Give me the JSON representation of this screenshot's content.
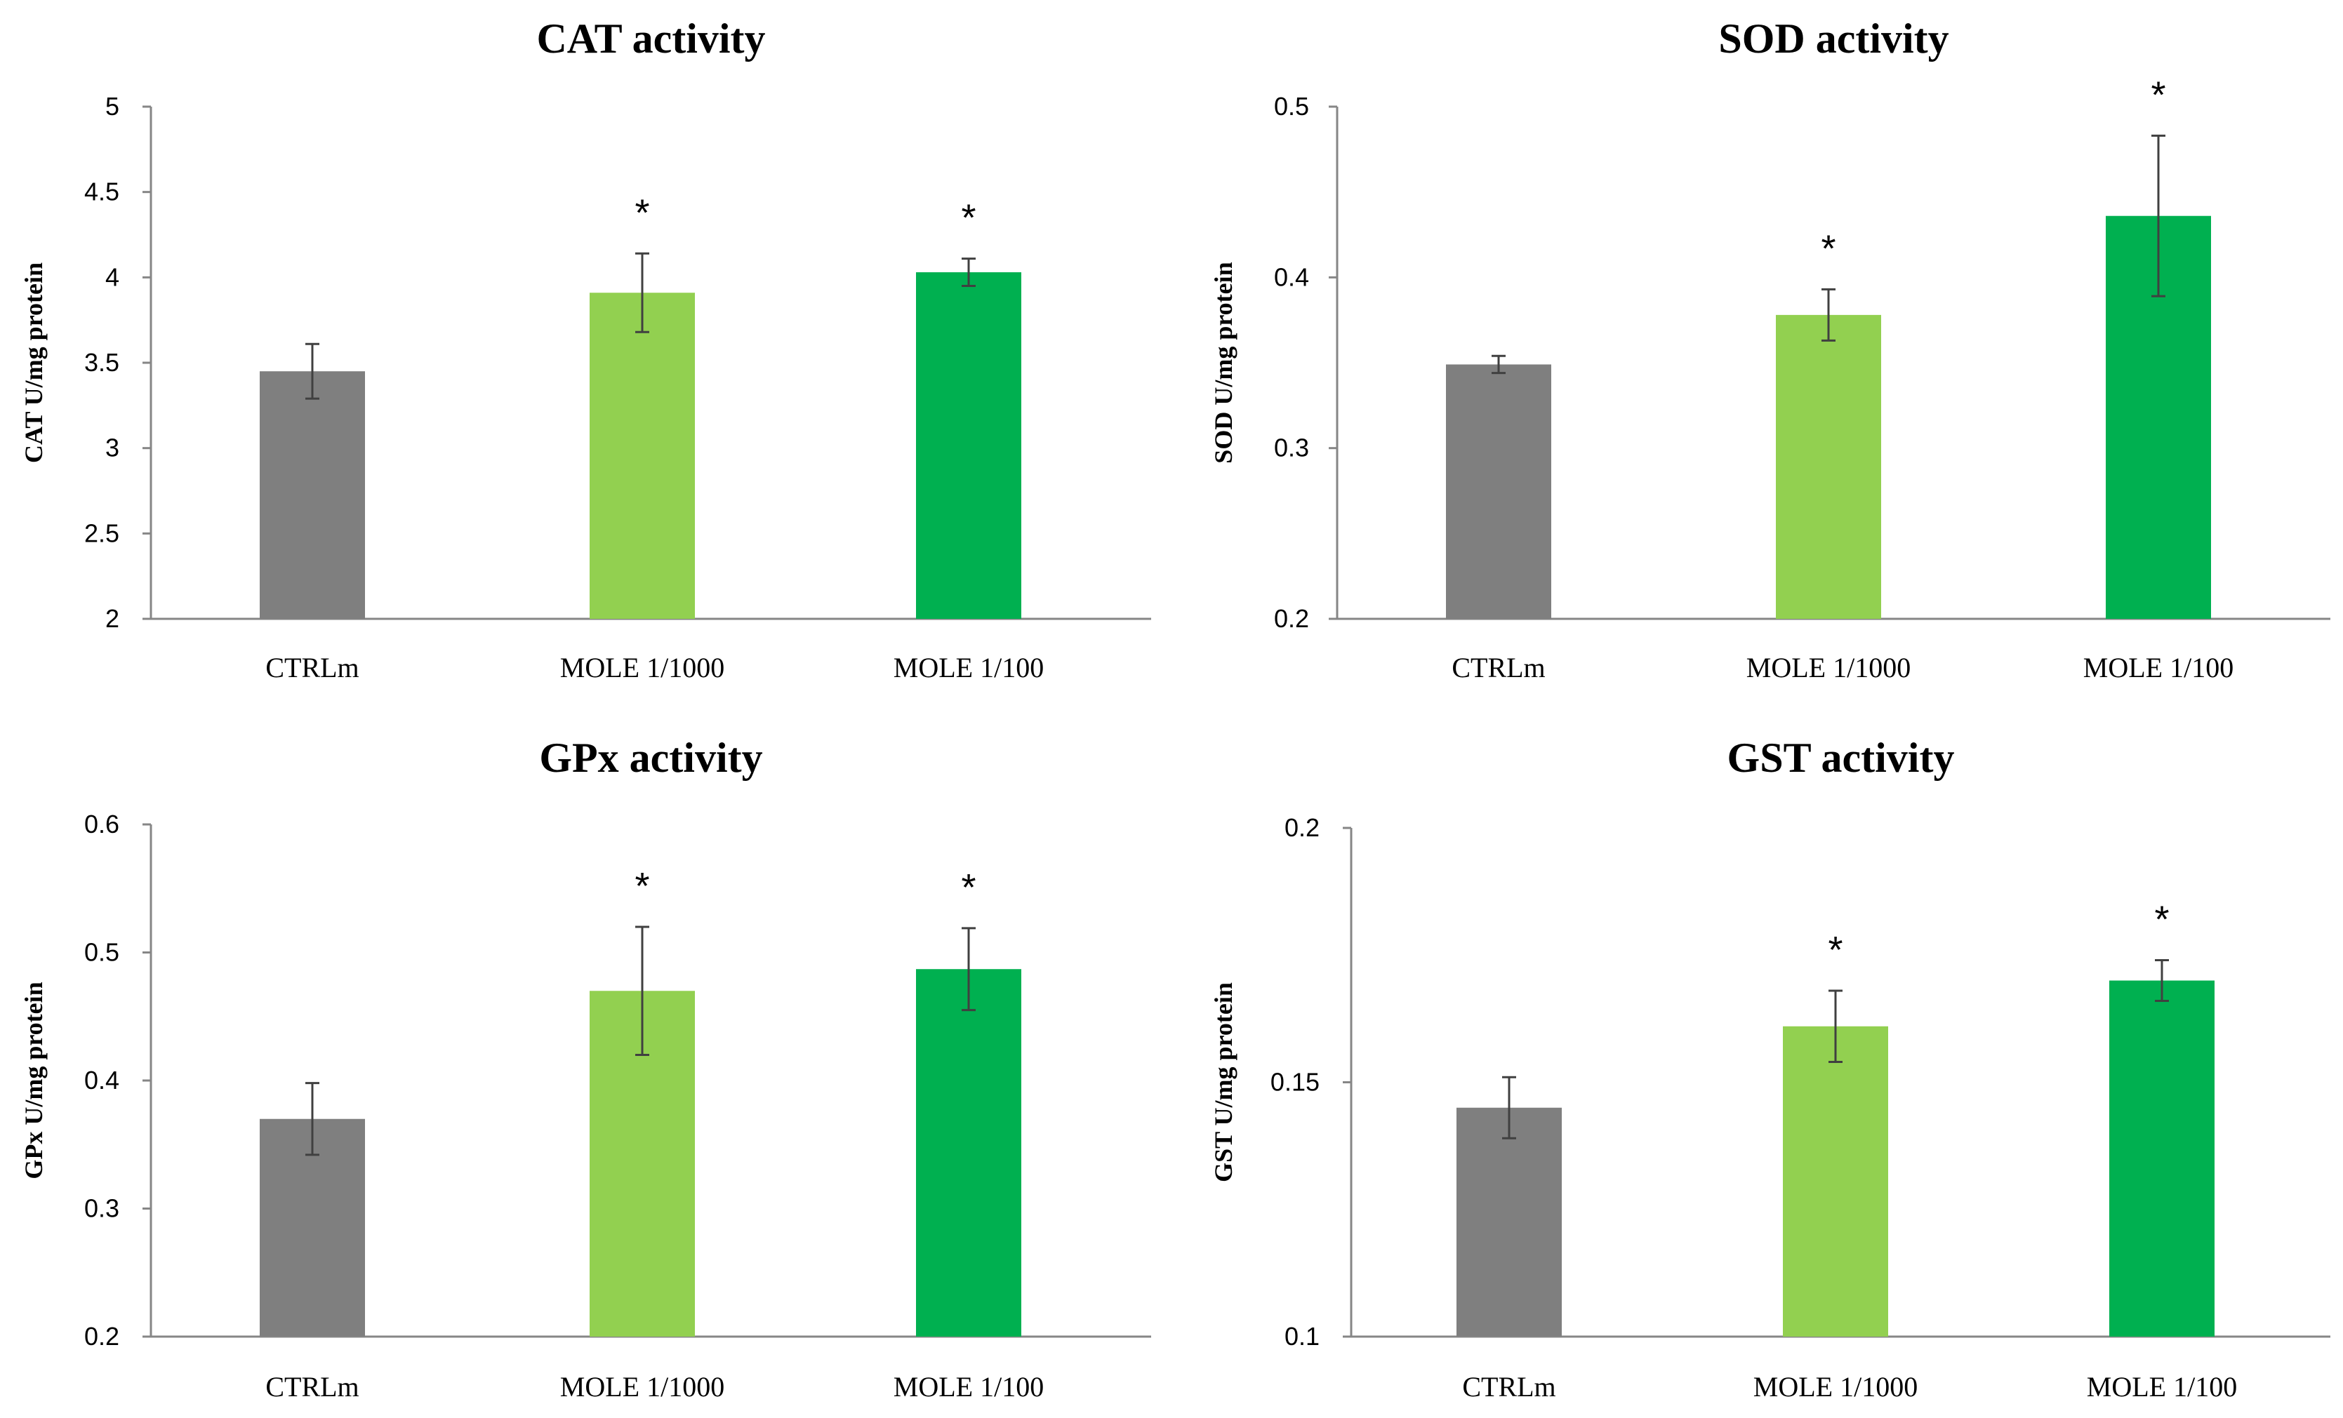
{
  "colors": {
    "ctrl": "#7f7f7f",
    "mole1000": "#92d050",
    "mole100": "#00b050",
    "axis": "#868686",
    "error": "#404040"
  },
  "chart_data": [
    {
      "type": "bar",
      "title": "CAT activity",
      "ylabel": "CAT U/mg protein",
      "categories": [
        "CTRLm",
        "MOLE 1/1000",
        "MOLE 1/100"
      ],
      "values": [
        3.45,
        3.91,
        4.03
      ],
      "errors": [
        0.16,
        0.23,
        0.08
      ],
      "significance": [
        "",
        "*",
        "*"
      ],
      "ylim": [
        2,
        5
      ],
      "yticks": [
        "2",
        "2.5",
        "3",
        "3.5",
        "4",
        "4.5",
        "5"
      ],
      "grid": false
    },
    {
      "type": "bar",
      "title": "SOD activity",
      "ylabel": "SOD U/mg protein",
      "categories": [
        "CTRLm",
        "MOLE 1/1000",
        "MOLE 1/100"
      ],
      "values": [
        0.349,
        0.378,
        0.436
      ],
      "errors": [
        0.005,
        0.015,
        0.047
      ],
      "significance": [
        "",
        "*",
        "*"
      ],
      "ylim": [
        0.2,
        0.5
      ],
      "yticks": [
        "0.2",
        "0.3",
        "0.4",
        "0.5"
      ],
      "grid": false
    },
    {
      "type": "bar",
      "title": "GPx activity",
      "ylabel": "GPx U/mg protein",
      "categories": [
        "CTRLm",
        "MOLE 1/1000",
        "MOLE 1/100"
      ],
      "values": [
        0.37,
        0.47,
        0.487
      ],
      "errors": [
        0.028,
        0.05,
        0.032
      ],
      "significance": [
        "",
        "*",
        "*"
      ],
      "ylim": [
        0.2,
        0.6
      ],
      "yticks": [
        "0.2",
        "0.3",
        "0.4",
        "0.5",
        "0.6"
      ],
      "grid": false
    },
    {
      "type": "bar",
      "title": "GST activity",
      "ylabel": "GST U/mg protein",
      "categories": [
        "CTRLm",
        "MOLE 1/1000",
        "MOLE 1/100"
      ],
      "values": [
        0.145,
        0.161,
        0.17
      ],
      "errors": [
        0.006,
        0.007,
        0.004
      ],
      "significance": [
        "",
        "*",
        "*"
      ],
      "ylim": [
        0.1,
        0.2
      ],
      "yticks": [
        "0.1",
        "0.15",
        "0.2"
      ],
      "grid": false
    }
  ]
}
